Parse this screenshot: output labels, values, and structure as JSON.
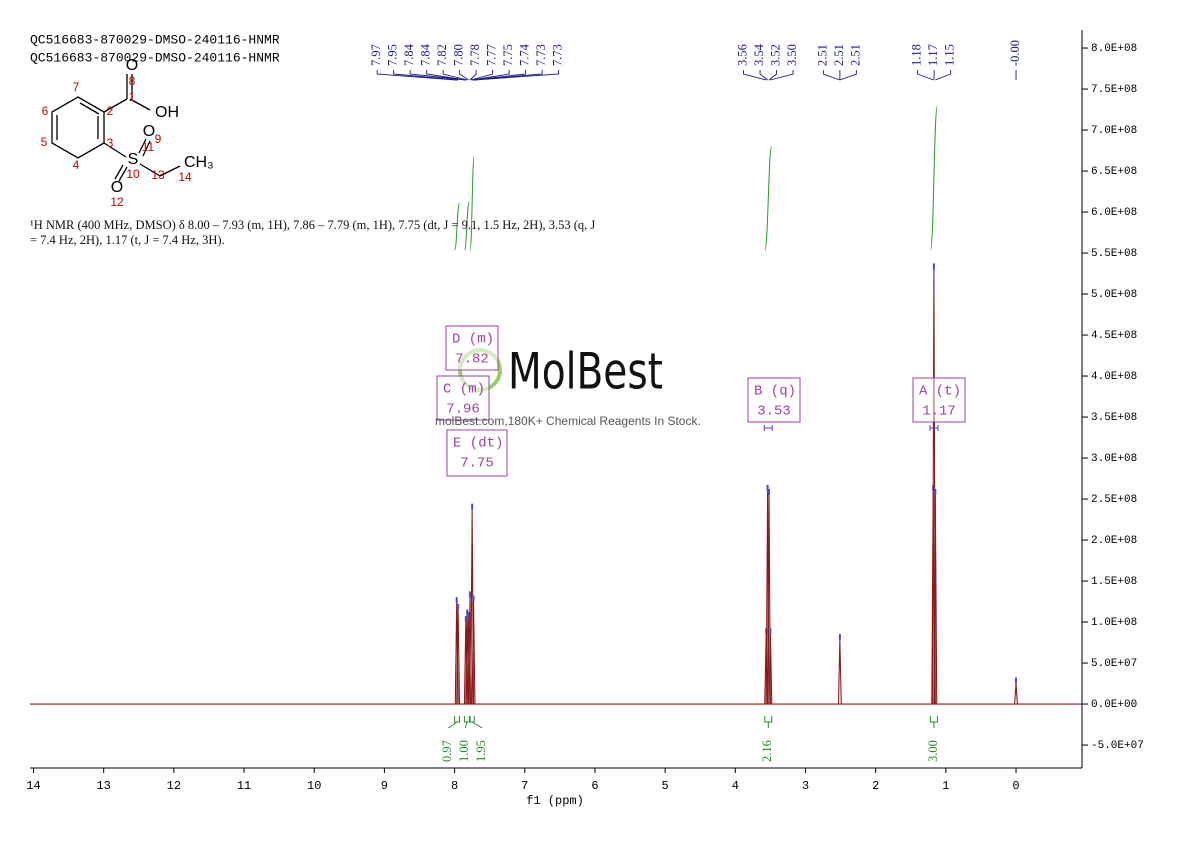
{
  "chart_data": {
    "type": "spectrum",
    "title": "QC516683-870029-DMSO-240116-HNMR",
    "subtitle": "QC516683-870029-DMSO-240116-HNMR",
    "xlabel": "f1 (ppm)",
    "description": "¹H NMR (400 MHz, DMSO) δ 8.00 – 7.93 (m, 1H), 7.86 – 7.79 (m, 1H), 7.75 (dt, J = 9.1, 1.5 Hz, 2H), 3.53 (q, J = 7.4 Hz, 2H), 1.17 (t, J = 7.4 Hz, 3H).",
    "xlim": [
      14.05,
      -0.94
    ],
    "xticks": [
      14,
      13,
      12,
      11,
      10,
      9,
      8,
      7,
      6,
      5,
      4,
      3,
      2,
      1,
      0
    ],
    "ylim": [
      -78000000,
      822000000
    ],
    "yticks": [
      {
        "value": -50000000,
        "label": "-5.0E+07"
      },
      {
        "value": 0,
        "label": "0.0E+00"
      },
      {
        "value": 50000000,
        "label": "5.0E+07"
      },
      {
        "value": 100000000,
        "label": "1.0E+08"
      },
      {
        "value": 150000000,
        "label": "1.5E+08"
      },
      {
        "value": 200000000,
        "label": "2.0E+08"
      },
      {
        "value": 250000000,
        "label": "2.5E+08"
      },
      {
        "value": 300000000,
        "label": "3.0E+08"
      },
      {
        "value": 350000000,
        "label": "3.5E+08"
      },
      {
        "value": 400000000,
        "label": "4.0E+08"
      },
      {
        "value": 450000000,
        "label": "4.5E+08"
      },
      {
        "value": 500000000,
        "label": "5.0E+08"
      },
      {
        "value": 550000000,
        "label": "5.5E+08"
      },
      {
        "value": 600000000,
        "label": "6.0E+08"
      },
      {
        "value": 650000000,
        "label": "6.5E+08"
      },
      {
        "value": 700000000,
        "label": "7.0E+08"
      },
      {
        "value": 750000000,
        "label": "7.5E+08"
      },
      {
        "value": 800000000,
        "label": "8.0E+08"
      }
    ],
    "color": "#8b1a1a",
    "peaks": {
      "x": [
        7.97,
        7.95,
        7.84,
        7.82,
        7.8,
        7.78,
        7.75,
        7.73,
        3.56,
        3.54,
        3.52,
        3.5,
        2.51,
        1.18,
        1.17,
        1.15,
        0
      ],
      "values": [
        123000000,
        115000000,
        100000000,
        108000000,
        105000000,
        130000000,
        237000000,
        125000000,
        85000000,
        260000000,
        255000000,
        85000000,
        78000000,
        260000000,
        530000000,
        255000000,
        25000000
      ]
    },
    "peak_labels": [
      {
        "value": 7.97,
        "label": "7.97"
      },
      {
        "value": 7.95,
        "label": "7.95"
      },
      {
        "value": 7.84,
        "label": "7.84"
      },
      {
        "value": 7.84,
        "label": "7.84"
      },
      {
        "value": 7.82,
        "label": "7.82"
      },
      {
        "value": 7.8,
        "label": "7.80"
      },
      {
        "value": 7.78,
        "label": "7.78"
      },
      {
        "value": 7.77,
        "label": "7.77"
      },
      {
        "value": 7.75,
        "label": "7.75"
      },
      {
        "value": 7.74,
        "label": "7.74"
      },
      {
        "value": 7.73,
        "label": "7.73"
      },
      {
        "value": 7.73,
        "label": "7.73"
      },
      {
        "value": 3.56,
        "label": "3.56"
      },
      {
        "value": 3.54,
        "label": "3.54"
      },
      {
        "value": 3.52,
        "label": "3.52"
      },
      {
        "value": 3.5,
        "label": "3.50"
      },
      {
        "value": 2.51,
        "label": "2.51"
      },
      {
        "value": 2.51,
        "label": "2.51"
      },
      {
        "value": 2.51,
        "label": "2.51"
      },
      {
        "value": 1.18,
        "label": "1.18"
      },
      {
        "value": 1.17,
        "label": "1.17"
      },
      {
        "value": 1.15,
        "label": "1.15"
      },
      {
        "value": 0,
        "label": "-0.00"
      }
    ],
    "integrals": {
      "ranges": [
        [
          8.0,
          7.93
        ],
        [
          7.86,
          7.79
        ],
        [
          7.78,
          7.72
        ],
        [
          3.58,
          3.48
        ],
        [
          1.22,
          1.12
        ]
      ],
      "values": [
        0.97,
        1,
        1.95,
        2.16,
        3
      ],
      "value_labels": [
        "0.97",
        "1.00",
        "1.95",
        "2.16",
        "3.00"
      ]
    },
    "multiplets": [
      {
        "name": "D (m)",
        "shift": 7.82
      },
      {
        "name": "C (m)",
        "shift": 7.96
      },
      {
        "name": "E (dt)",
        "shift": 7.75
      },
      {
        "name": "B (q)",
        "shift": 3.53
      },
      {
        "name": "A (t)",
        "shift": 1.17
      }
    ],
    "watermark": {
      "brand": "MolBest",
      "tagline": "molBest.com,180K+ Chemical Reagents In Stock."
    },
    "structure": {
      "atoms": [
        "O",
        "OH",
        "S",
        "O",
        "O",
        "CH₃"
      ],
      "numbers": [
        1,
        2,
        3,
        4,
        5,
        6,
        7,
        8,
        9,
        10,
        11,
        12,
        13,
        14
      ]
    }
  }
}
